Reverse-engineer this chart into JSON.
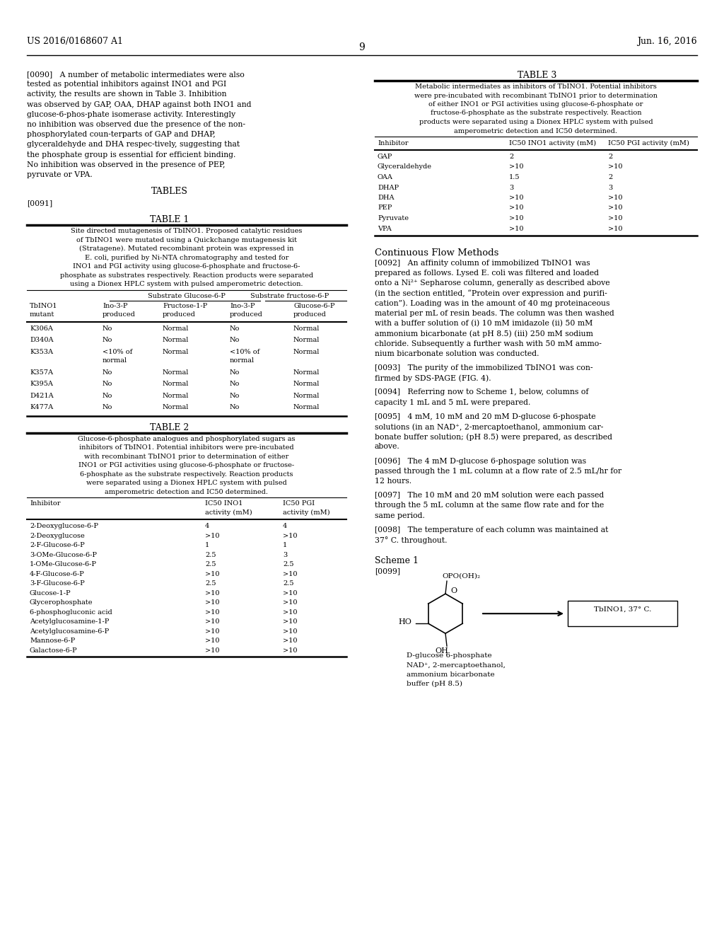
{
  "page_number": "9",
  "patent_number": "US 2016/0168607 A1",
  "patent_date": "Jun. 16, 2016",
  "bg_color": "#ffffff",
  "text_color": "#000000",
  "para_0090": "[0090]   A number of metabolic intermediates were also tested as potential inhibitors against INO1 and PGI activity, the results are shown in Table 3. Inhibition was observed by GAP, OAA, DHAP against both INO1 and glucose-6-phos-phate isomerase activity. Interestingly no inhibition was observed due the presence of the non-phosphorylated coun-terparts of GAP and DHAP, glyceraldehyde and DHA respec-tively, suggesting that the phosphate group is essential for efficient binding. No inhibition was observed in the presence of PEP, pyruvate or VPA.",
  "tables_heading": "TABLES",
  "para_0091": "[0091]",
  "table1_title": "TABLE 1",
  "table1_caption_lines": [
    "Site directed mutagenesis of TbINO1. Proposed catalytic residues",
    "of TbINO1 were mutated using a Quickchange mutagenesis kit",
    "(Stratagene). Mutated recombinant protein was expressed in",
    "E. coli, purified by Ni-NTA chromatography and tested for",
    "INO1 and PGI activity using glucose-6-phosphate and fructose-6-",
    "phosphate as substrates respectively. Reaction products were separated",
    "using a Dionex HPLC system with pulsed amperometric detection."
  ],
  "table1_subheader1": "Substrate Glucose-6-P",
  "table1_subheader2": "Substrate fructose-6-P",
  "table1_col_headers": [
    "TbINO1\nmutant",
    "Ino-3-P\nproduced",
    "Fructose-1-P\nproduced",
    "Ino-3-P\nproduced",
    "Glucose-6-P\nproduced"
  ],
  "table1_rows": [
    [
      "K306A",
      "No",
      "Normal",
      "No",
      "Normal"
    ],
    [
      "D340A",
      "No",
      "Normal",
      "No",
      "Normal"
    ],
    [
      "K353A",
      "<10% of\nnormal",
      "Normal",
      "<10% of\nnormal",
      "Normal"
    ],
    [
      "K357A",
      "No",
      "Normal",
      "No",
      "Normal"
    ],
    [
      "K395A",
      "No",
      "Normal",
      "No",
      "Normal"
    ],
    [
      "D421A",
      "No",
      "Normal",
      "No",
      "Normal"
    ],
    [
      "K477A",
      "No",
      "Normal",
      "No",
      "Normal"
    ]
  ],
  "table2_title": "TABLE 2",
  "table2_caption_lines": [
    "Glucose-6-phosphate analogues and phosphorylated sugars as",
    "inhibitors of TbINO1. Potential inhibitors were pre-incubated",
    "with recombinant TbINO1 prior to determination of either",
    "INO1 or PGI activities using glucose-6-phosphate or fructose-",
    "6-phosphate as the substrate respectively. Reaction products",
    "were separated using a Dionex HPLC system with pulsed",
    "amperometric detection and IC50 determined."
  ],
  "table2_col_headers": [
    "Inhibitor",
    "IC50 INO1\nactivity (mM)",
    "IC50 PGI\nactivity (mM)"
  ],
  "table2_rows": [
    [
      "2-Deoxyglucose-6-P",
      "4",
      "4"
    ],
    [
      "2-Deoxyglucose",
      ">10",
      ">10"
    ],
    [
      "2-F-Glucose-6-P",
      "1",
      "1"
    ],
    [
      "3-OMe-Glucose-6-P",
      "2.5",
      "3"
    ],
    [
      "1-OMe-Glucose-6-P",
      "2.5",
      "2.5"
    ],
    [
      "4-F-Glucose-6-P",
      ">10",
      ">10"
    ],
    [
      "3-F-Glucose-6-P",
      "2.5",
      "2.5"
    ],
    [
      "Glucose-1-P",
      ">10",
      ">10"
    ],
    [
      "Glycerophosphate",
      ">10",
      ">10"
    ],
    [
      "6-phosphogluconic acid",
      ">10",
      ">10"
    ],
    [
      "Acetylglucosamine-1-P",
      ">10",
      ">10"
    ],
    [
      "Acetylglucosamine-6-P",
      ">10",
      ">10"
    ],
    [
      "Mannose-6-P",
      ">10",
      ">10"
    ],
    [
      "Galactose-6-P",
      ">10",
      ">10"
    ]
  ],
  "table3_title": "TABLE 3",
  "table3_caption_lines": [
    "Metabolic intermediates as inhibitors of TbINO1. Potential inhibitors",
    "were pre-incubated with recombinant TbINO1 prior to determination",
    "of either INO1 or PGI activities using glucose-6-phosphate or",
    "fructose-6-phosphate as the substrate respectively. Reaction",
    "products were separated using a Dionex HPLC system with pulsed",
    "amperometric detection and IC50 determined."
  ],
  "table3_col_headers": [
    "Inhibitor",
    "IC50 INO1 activity (mM)",
    "IC50 PGI activity (mM)"
  ],
  "table3_rows": [
    [
      "GAP",
      "2",
      "2"
    ],
    [
      "Glyceraldehyde",
      ">10",
      ">10"
    ],
    [
      "OAA",
      "1.5",
      "2"
    ],
    [
      "DHAP",
      "3",
      "3"
    ],
    [
      "DHA",
      ">10",
      ">10"
    ],
    [
      "PEP",
      ">10",
      ">10"
    ],
    [
      "Pyruvate",
      ">10",
      ">10"
    ],
    [
      "VPA",
      ">10",
      ">10"
    ]
  ],
  "continuous_flow_heading": "Continuous Flow Methods",
  "para_0092_lines": [
    "[0092]   An affinity column of immobilized TbINO1 was",
    "prepared as follows. Lysed E. coli was filtered and loaded",
    "onto a Ni²⁺ Sepharose column, generally as described above",
    "(in the section entitled, “Protein over expression and purifi-",
    "cation”). Loading was in the amount of 40 mg proteinaceous",
    "material per mL of resin beads. The column was then washed",
    "with a buffer solution of (i) 10 mM imidazole (ii) 50 mM",
    "ammonium bicarbonate (at pH 8.5) (iii) 250 mM sodium",
    "chloride. Subsequently a further wash with 50 mM ammo-",
    "nium bicarbonate solution was conducted."
  ],
  "para_0093_lines": [
    "[0093]   The purity of the immobilized TbINO1 was con-",
    "firmed by SDS-PAGE (FIG. 4)."
  ],
  "para_0094_lines": [
    "[0094]   Referring now to Scheme 1, below, columns of",
    "capacity 1 mL and 5 mL were prepared."
  ],
  "para_0095_lines": [
    "[0095]   4 mM, 10 mM and 20 mM D-glucose 6-phospate",
    "solutions (in an NAD⁺, 2-mercaptoethanol, ammonium car-",
    "bonate buffer solution; (pH 8.5) were prepared, as described",
    "above."
  ],
  "para_0096_lines": [
    "[0096]   The 4 mM D-glucose 6-phospage solution was",
    "passed through the 1 mL column at a flow rate of 2.5 mL/hr for",
    "12 hours."
  ],
  "para_0097_lines": [
    "[0097]   The 10 mM and 20 mM solution were each passed",
    "through the 5 mL column at the same flow rate and for the",
    "same period."
  ],
  "para_0098_lines": [
    "[0098]   The temperature of each column was maintained at",
    "37° C. throughout."
  ],
  "scheme1_heading": "Scheme 1",
  "para_0099": "[0099]",
  "chem_label1": "D-glucose 6-phosphate",
  "chem_label2": "NAD⁺, 2-mercaptoethanol,",
  "chem_label3": "ammonium bicarbonate",
  "chem_label4": "buffer (pH 8.5)",
  "chem_opo": "OPO(OH)₂",
  "chem_ho": "HO",
  "chem_o": "O",
  "chem_oh": "OH",
  "box_label": "TbINO1, 37° C."
}
